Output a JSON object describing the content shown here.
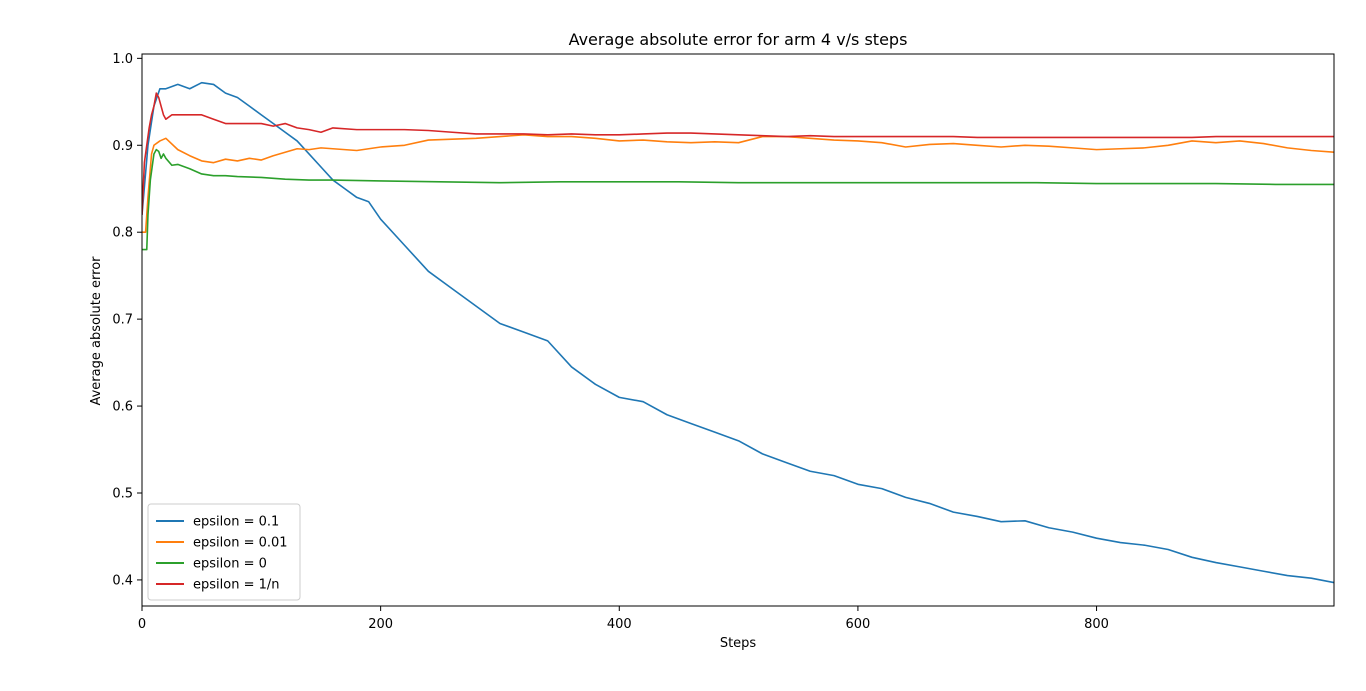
{
  "chart_data": {
    "type": "line",
    "title": "Average absolute error for arm 4 v/s steps",
    "xlabel": "Steps",
    "ylabel": "Average absolute error",
    "xlim": [
      0,
      999
    ],
    "ylim": [
      0.37,
      1.005
    ],
    "x_ticks": [
      0,
      200,
      400,
      600,
      800
    ],
    "y_ticks": [
      0.4,
      0.5,
      0.6,
      0.7,
      0.8,
      0.9,
      1.0
    ],
    "x_tick_labels": [
      "0",
      "200",
      "400",
      "600",
      "800"
    ],
    "y_tick_labels": [
      "0.4",
      "0.5",
      "0.6",
      "0.7",
      "0.8",
      "0.9",
      "1.0"
    ],
    "grid": false,
    "legend_position": "lower-left",
    "series": [
      {
        "name": "epsilon = 0.1",
        "color": "#1f77b4",
        "x": [
          0,
          5,
          10,
          15,
          20,
          30,
          40,
          50,
          60,
          70,
          80,
          90,
          100,
          110,
          120,
          130,
          140,
          150,
          160,
          170,
          180,
          190,
          200,
          220,
          240,
          260,
          280,
          300,
          320,
          340,
          360,
          380,
          400,
          420,
          440,
          460,
          480,
          500,
          520,
          540,
          560,
          580,
          600,
          620,
          640,
          660,
          680,
          700,
          720,
          740,
          760,
          780,
          800,
          820,
          840,
          860,
          880,
          900,
          920,
          940,
          960,
          980,
          999
        ],
        "y": [
          0.82,
          0.9,
          0.945,
          0.965,
          0.965,
          0.97,
          0.965,
          0.972,
          0.97,
          0.96,
          0.955,
          0.945,
          0.935,
          0.925,
          0.915,
          0.905,
          0.89,
          0.875,
          0.86,
          0.85,
          0.84,
          0.835,
          0.815,
          0.785,
          0.755,
          0.735,
          0.715,
          0.695,
          0.685,
          0.675,
          0.645,
          0.625,
          0.61,
          0.605,
          0.59,
          0.58,
          0.57,
          0.56,
          0.545,
          0.535,
          0.525,
          0.52,
          0.51,
          0.505,
          0.495,
          0.488,
          0.478,
          0.473,
          0.467,
          0.468,
          0.46,
          0.455,
          0.448,
          0.443,
          0.44,
          0.435,
          0.426,
          0.42,
          0.415,
          0.41,
          0.405,
          0.402,
          0.397
        ]
      },
      {
        "name": "epsilon = 0.01",
        "color": "#ff7f0e",
        "x": [
          0,
          3,
          5,
          8,
          10,
          15,
          20,
          30,
          40,
          50,
          60,
          70,
          80,
          90,
          100,
          110,
          120,
          130,
          140,
          150,
          160,
          180,
          200,
          220,
          240,
          260,
          280,
          300,
          320,
          340,
          360,
          380,
          400,
          420,
          440,
          460,
          480,
          500,
          520,
          540,
          560,
          580,
          600,
          620,
          640,
          660,
          680,
          700,
          720,
          740,
          760,
          780,
          800,
          820,
          840,
          860,
          880,
          900,
          920,
          940,
          960,
          980,
          999
        ],
        "y": [
          0.8,
          0.8,
          0.84,
          0.89,
          0.9,
          0.905,
          0.908,
          0.895,
          0.888,
          0.882,
          0.88,
          0.884,
          0.882,
          0.885,
          0.883,
          0.888,
          0.892,
          0.896,
          0.895,
          0.897,
          0.896,
          0.894,
          0.898,
          0.9,
          0.906,
          0.907,
          0.908,
          0.91,
          0.912,
          0.91,
          0.91,
          0.908,
          0.905,
          0.906,
          0.904,
          0.903,
          0.904,
          0.903,
          0.91,
          0.91,
          0.908,
          0.906,
          0.905,
          0.903,
          0.898,
          0.901,
          0.902,
          0.9,
          0.898,
          0.9,
          0.899,
          0.897,
          0.895,
          0.896,
          0.897,
          0.9,
          0.905,
          0.903,
          0.905,
          0.902,
          0.897,
          0.894,
          0.892
        ]
      },
      {
        "name": "epsilon = 0",
        "color": "#2ca02c",
        "x": [
          0,
          4,
          5,
          7,
          9,
          10,
          12,
          14,
          16,
          18,
          20,
          25,
          30,
          40,
          50,
          60,
          70,
          80,
          100,
          120,
          140,
          160,
          200,
          250,
          300,
          350,
          400,
          450,
          500,
          550,
          600,
          650,
          700,
          750,
          800,
          850,
          900,
          950,
          999
        ],
        "y": [
          0.78,
          0.78,
          0.82,
          0.86,
          0.88,
          0.89,
          0.895,
          0.893,
          0.885,
          0.89,
          0.885,
          0.877,
          0.878,
          0.873,
          0.867,
          0.865,
          0.865,
          0.864,
          0.863,
          0.861,
          0.86,
          0.86,
          0.859,
          0.858,
          0.857,
          0.858,
          0.858,
          0.858,
          0.857,
          0.857,
          0.857,
          0.857,
          0.857,
          0.857,
          0.856,
          0.856,
          0.856,
          0.855,
          0.855
        ]
      },
      {
        "name": "epsilon = 1/n",
        "color": "#d62728",
        "x": [
          0,
          2,
          4,
          6,
          8,
          10,
          12,
          14,
          16,
          18,
          20,
          25,
          30,
          40,
          50,
          60,
          70,
          80,
          90,
          100,
          110,
          120,
          130,
          140,
          150,
          160,
          180,
          200,
          220,
          240,
          260,
          280,
          300,
          320,
          340,
          360,
          380,
          400,
          420,
          440,
          460,
          480,
          500,
          520,
          540,
          560,
          580,
          600,
          620,
          640,
          660,
          680,
          700,
          720,
          740,
          760,
          780,
          800,
          820,
          840,
          860,
          880,
          900,
          920,
          940,
          960,
          980,
          999
        ],
        "y": [
          0.82,
          0.88,
          0.9,
          0.92,
          0.935,
          0.945,
          0.96,
          0.955,
          0.945,
          0.935,
          0.93,
          0.935,
          0.935,
          0.935,
          0.935,
          0.93,
          0.925,
          0.925,
          0.925,
          0.925,
          0.922,
          0.925,
          0.92,
          0.918,
          0.915,
          0.92,
          0.918,
          0.918,
          0.918,
          0.917,
          0.915,
          0.913,
          0.913,
          0.913,
          0.912,
          0.913,
          0.912,
          0.912,
          0.913,
          0.914,
          0.914,
          0.913,
          0.912,
          0.911,
          0.91,
          0.911,
          0.91,
          0.91,
          0.91,
          0.91,
          0.91,
          0.91,
          0.909,
          0.909,
          0.909,
          0.909,
          0.909,
          0.909,
          0.909,
          0.909,
          0.909,
          0.909,
          0.91,
          0.91,
          0.91,
          0.91,
          0.91,
          0.91
        ]
      }
    ]
  }
}
